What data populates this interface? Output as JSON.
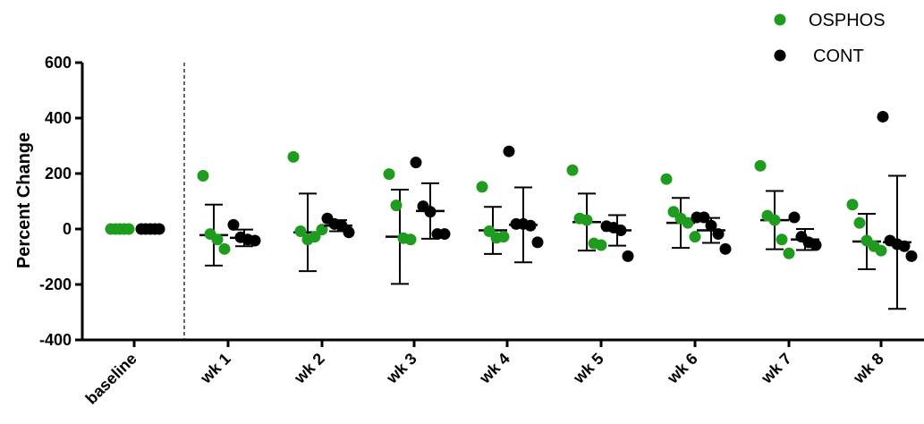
{
  "chart_data": {
    "type": "scatter",
    "ylabel": "Percent Change",
    "ylim": [
      -400,
      600
    ],
    "yticks": [
      600,
      400,
      200,
      0,
      -200,
      -400
    ],
    "categories": [
      "baseline",
      "wk 1",
      "wk 2",
      "wk 3",
      "wk 4",
      "wk 5",
      "wk 6",
      "wk 7",
      "wk 8"
    ],
    "legend_position": "top-right",
    "grid": false,
    "series": [
      {
        "name": "OSPHOS",
        "color": "#1f9b1f",
        "points": [
          [
            0,
            0,
            0,
            0,
            0
          ],
          [
            192,
            -18,
            -38,
            -72
          ],
          [
            260,
            -8,
            -38,
            -28,
            -2
          ],
          [
            198,
            85,
            -33,
            -38
          ],
          [
            152,
            -8,
            -32,
            -28
          ],
          [
            212,
            38,
            32,
            -52,
            -58
          ],
          [
            180,
            62,
            38,
            22,
            -28
          ],
          [
            228,
            48,
            32,
            -38,
            -88
          ],
          [
            88,
            22,
            -42,
            -62,
            -78
          ]
        ],
        "mean": [
          0,
          -22,
          -12,
          -28,
          -5,
          25,
          22,
          32,
          -45
        ],
        "sd": [
          0,
          110,
          140,
          170,
          85,
          103,
          90,
          105,
          100
        ]
      },
      {
        "name": "CONT",
        "color": "#000000",
        "points": [
          [
            0,
            0,
            0,
            0,
            0
          ],
          [
            15,
            -30,
            -38,
            -42
          ],
          [
            38,
            18,
            12,
            -12
          ],
          [
            240,
            82,
            62,
            -18,
            -18
          ],
          [
            280,
            18,
            18,
            12,
            -48
          ],
          [
            10,
            5,
            -5,
            -98
          ],
          [
            42,
            42,
            12,
            -18,
            -72
          ],
          [
            42,
            -28,
            -48,
            -58
          ],
          [
            405,
            -42,
            -55,
            -62,
            -98
          ]
        ],
        "mean": [
          0,
          -32,
          12,
          65,
          15,
          -5,
          -5,
          -38,
          -48
        ],
        "sd": [
          0,
          30,
          20,
          100,
          135,
          55,
          45,
          38,
          240
        ]
      }
    ]
  }
}
